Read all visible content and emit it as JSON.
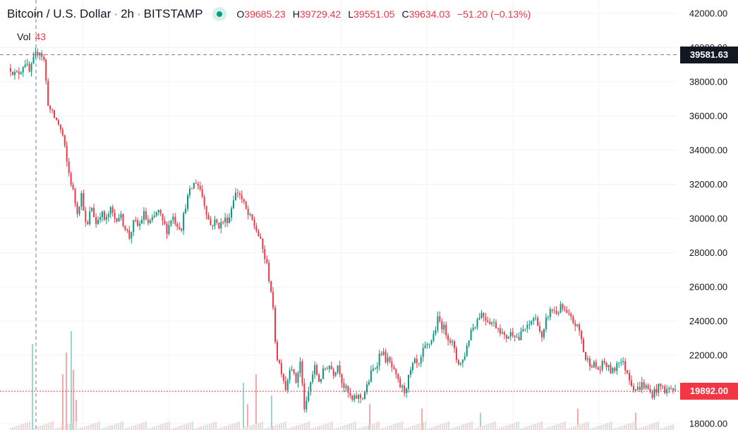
{
  "legend": {
    "symbol": "Bitcoin / U.S. Dollar",
    "interval": "2h",
    "exchange": "BITSTAMP",
    "o_label": "O",
    "o_value": "39685.23",
    "h_label": "H",
    "h_value": "39729.42",
    "l_label": "L",
    "l_value": "39551.05",
    "c_label": "C",
    "c_value": "39634.03",
    "change": "−51.20 (−0.13%)"
  },
  "volume": {
    "label": "Vol",
    "value": "43"
  },
  "crosshair_price": "39581.63",
  "last_price": "19892.00",
  "colors": {
    "up": "#089981",
    "down": "#f23645",
    "grid": "#f0f3fa",
    "axis_text": "#131722",
    "crosshair_label_bg": "#131722"
  },
  "chart_data": {
    "type": "candlestick",
    "ylim": [
      18000,
      42000
    ],
    "y_ticks": [
      "18000.00",
      "20000.00",
      "22000.00",
      "24000.00",
      "26000.00",
      "28000.00",
      "30000.00",
      "32000.00",
      "34000.00",
      "36000.00",
      "38000.00",
      "40000.00",
      "42000.00"
    ],
    "crosshair_y": 39581.63,
    "last_y": 19892,
    "price_path": [
      38800,
      38400,
      38600,
      39200,
      38500,
      39400,
      39900,
      39300,
      36500,
      36000,
      35600,
      34800,
      33000,
      31800,
      30400,
      31500,
      29200,
      30800,
      29700,
      30400,
      29800,
      30500,
      30000,
      30200,
      29600,
      28900,
      29800,
      29500,
      30300,
      29700,
      29900,
      30500,
      29800,
      29300,
      30200,
      29700,
      29500,
      31000,
      31700,
      32200,
      31700,
      30700,
      29600,
      29800,
      29600,
      29900,
      30000,
      31300,
      31600,
      30900,
      30200,
      29800,
      29200,
      28300,
      27200,
      25600,
      22000,
      21200,
      20000,
      21700,
      20300,
      21600,
      18600,
      20200,
      21300,
      20500,
      21100,
      21500,
      21000,
      21500,
      20300,
      19800,
      19300,
      19600,
      19500,
      20100,
      21000,
      21400,
      22300,
      21800,
      21500,
      20800,
      20200,
      19900,
      20800,
      21600,
      21300,
      22300,
      22600,
      23100,
      24100,
      23700,
      23200,
      22700,
      21700,
      21500,
      22400,
      23500,
      23900,
      24500,
      24200,
      24000,
      23800,
      23600,
      23000,
      23200,
      23400,
      22900,
      23500,
      23600,
      24200,
      24000,
      22800,
      24300,
      24700,
      24500,
      24800,
      24400,
      24100,
      23800,
      23300,
      21800,
      21600,
      21400,
      21100,
      21600,
      21200,
      21000,
      21800,
      21500,
      21000,
      20200,
      20000,
      20300,
      20100,
      19700,
      20000,
      20200,
      19900,
      20100,
      19892
    ],
    "volume_spikes": [
      [
        45,
        0.2
      ],
      [
        88,
        0.13
      ],
      [
        93,
        0.18
      ],
      [
        100,
        0.23
      ],
      [
        103,
        0.14
      ],
      [
        107,
        0.07
      ],
      [
        344,
        0.11
      ],
      [
        350,
        0.06
      ],
      [
        362,
        0.13
      ],
      [
        384,
        0.08
      ],
      [
        523,
        0.06
      ],
      [
        597,
        0.05
      ],
      [
        680,
        0.04
      ],
      [
        818,
        0.05
      ],
      [
        900,
        0.04
      ]
    ]
  }
}
